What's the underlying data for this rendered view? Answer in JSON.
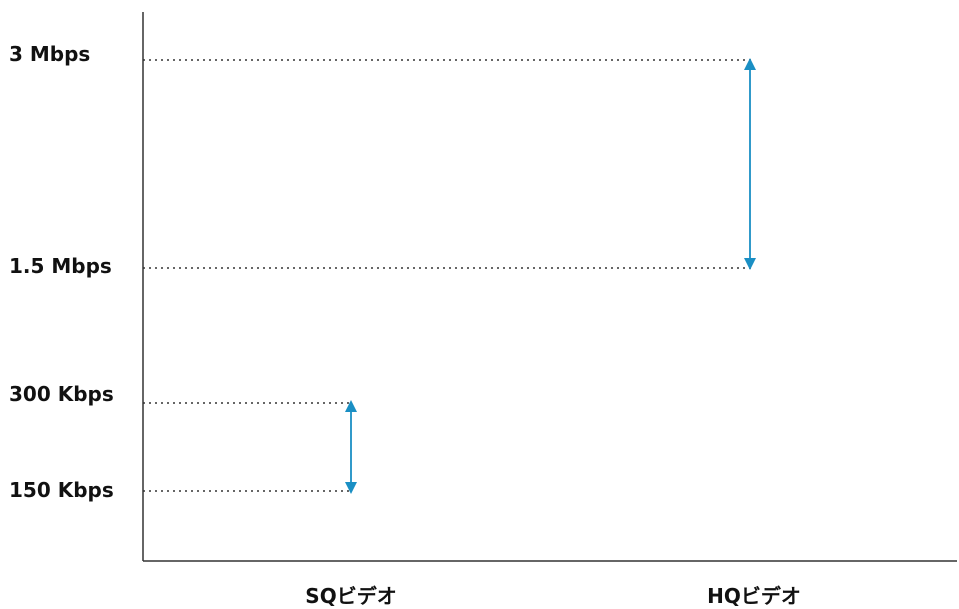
{
  "chart_data": {
    "type": "range",
    "title": "",
    "xlabel": "",
    "ylabel": "",
    "categories": [
      "SQビデオ",
      "HQビデオ"
    ],
    "ranges": [
      {
        "category": "SQビデオ",
        "low": "150 Kbps",
        "high": "300 Kbps"
      },
      {
        "category": "HQビデオ",
        "low": "1.5 Mbps",
        "high": "3 Mbps"
      }
    ],
    "y_ticks": [
      "3 Mbps",
      "1.5 Mbps",
      "300 Kbps",
      "150 Kbps"
    ],
    "grid": false,
    "legend": "none",
    "colors": {
      "arrow": "#1a8fc4",
      "guide": "#333333",
      "axis": "#333333",
      "text": "#111111"
    }
  }
}
